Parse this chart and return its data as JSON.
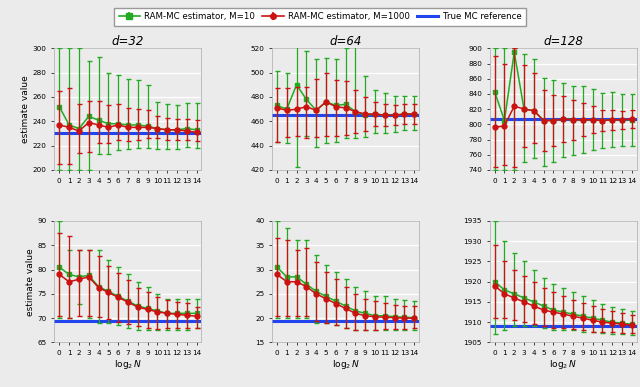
{
  "legend_labels": [
    "RAM-MC estimator, M=10",
    "RAM-MC estimator, M=1000",
    "True MC reference"
  ],
  "x_ticks": [
    0,
    1,
    2,
    3,
    4,
    5,
    6,
    7,
    8,
    9,
    10,
    11,
    12,
    13,
    14
  ],
  "y_label": "estimate value",
  "subplots": {
    "row0_col0": {
      "title": "d=32",
      "ylim": [
        200,
        300
      ],
      "yticks": [
        200,
        220,
        240,
        260,
        280,
        300
      ],
      "true_mc": 230,
      "green_mean": [
        252,
        237,
        234,
        244,
        241,
        238,
        238,
        237,
        237,
        236,
        234,
        233,
        233,
        234,
        233
      ],
      "green_err_lo": [
        52,
        37,
        34,
        44,
        28,
        25,
        22,
        20,
        19,
        18,
        17,
        16,
        16,
        15,
        15
      ],
      "green_err_hi": [
        48,
        63,
        66,
        46,
        52,
        42,
        40,
        38,
        37,
        34,
        22,
        21,
        20,
        21,
        22
      ],
      "red_mean": [
        237,
        235,
        232,
        239,
        237,
        235,
        237,
        235,
        235,
        235,
        234,
        233,
        233,
        232,
        231
      ],
      "red_err_lo": [
        32,
        30,
        18,
        24,
        15,
        13,
        12,
        11,
        10,
        9,
        8,
        8,
        8,
        7,
        7
      ],
      "red_err_hi": [
        28,
        32,
        22,
        18,
        20,
        18,
        17,
        16,
        15,
        14,
        10,
        10,
        9,
        10,
        10
      ]
    },
    "row0_col1": {
      "title": "d=64",
      "ylim": [
        420,
        520
      ],
      "yticks": [
        420,
        440,
        460,
        480,
        500,
        520
      ],
      "true_mc": 465,
      "green_mean": [
        473,
        470,
        490,
        478,
        469,
        476,
        473,
        474,
        468,
        465,
        466,
        465,
        465,
        466,
        466
      ],
      "green_err_lo": [
        30,
        28,
        68,
        30,
        30,
        34,
        30,
        28,
        22,
        18,
        16,
        15,
        14,
        13,
        13
      ],
      "green_err_hi": [
        28,
        30,
        35,
        40,
        42,
        36,
        38,
        46,
        54,
        32,
        20,
        18,
        16,
        15,
        15
      ],
      "red_mean": [
        471,
        469,
        470,
        472,
        469,
        476,
        472,
        471,
        468,
        466,
        466,
        465,
        465,
        466,
        466
      ],
      "red_err_lo": [
        28,
        22,
        22,
        26,
        22,
        28,
        24,
        22,
        18,
        14,
        10,
        9,
        8,
        8,
        8
      ],
      "red_err_hi": [
        16,
        18,
        18,
        16,
        26,
        24,
        22,
        22,
        18,
        14,
        10,
        9,
        8,
        8,
        8
      ]
    },
    "row0_col2": {
      "title": "d=128",
      "ylim": [
        740,
        900
      ],
      "yticks": [
        740,
        760,
        780,
        800,
        820,
        840,
        860,
        880,
        900
      ],
      "true_mc": 807,
      "green_mean": [
        843,
        805,
        895,
        820,
        818,
        805,
        805,
        807,
        806,
        806,
        806,
        805,
        806,
        806,
        806
      ],
      "green_err_lo": [
        103,
        65,
        155,
        70,
        62,
        60,
        54,
        50,
        46,
        44,
        40,
        36,
        36,
        34,
        34
      ],
      "green_err_hi": [
        57,
        95,
        5,
        72,
        68,
        56,
        54,
        48,
        44,
        44,
        40,
        36,
        36,
        34,
        34
      ],
      "red_mean": [
        796,
        798,
        824,
        820,
        818,
        805,
        805,
        807,
        806,
        806,
        806,
        805,
        806,
        806,
        807
      ],
      "red_err_lo": [
        52,
        52,
        80,
        50,
        42,
        40,
        34,
        30,
        26,
        22,
        18,
        14,
        13,
        12,
        12
      ],
      "red_err_hi": [
        94,
        82,
        76,
        58,
        50,
        40,
        34,
        30,
        26,
        22,
        18,
        14,
        13,
        12,
        12
      ]
    },
    "row1_col0": {
      "title": "d=32",
      "ylim": [
        65,
        90
      ],
      "yticks": [
        65,
        70,
        75,
        80,
        85,
        90
      ],
      "true_mc": 69.5,
      "green_mean": [
        80.5,
        79.0,
        78.5,
        78.8,
        76.5,
        75.5,
        74.5,
        73.5,
        72.5,
        72.0,
        71.5,
        71.0,
        71.0,
        71.0,
        71.0
      ],
      "green_err_lo": [
        10.5,
        9.0,
        5.5,
        8.8,
        7.5,
        6.5,
        6.0,
        5.5,
        5.0,
        4.5,
        4.0,
        3.5,
        3.5,
        3.5,
        3.0
      ],
      "green_err_hi": [
        9.5,
        5.0,
        5.5,
        5.2,
        7.5,
        6.5,
        6.0,
        5.5,
        5.0,
        4.5,
        3.5,
        3.0,
        3.0,
        3.0,
        3.0
      ],
      "red_mean": [
        79.0,
        77.5,
        78.0,
        78.5,
        76.3,
        75.3,
        74.3,
        73.3,
        72.3,
        71.8,
        71.3,
        71.0,
        70.8,
        70.6,
        70.4
      ],
      "red_err_lo": [
        8.5,
        7.5,
        7.5,
        8.0,
        6.0,
        5.5,
        5.0,
        4.5,
        4.0,
        3.8,
        3.5,
        3.0,
        2.8,
        2.6,
        2.5
      ],
      "red_err_hi": [
        8.5,
        9.5,
        6.0,
        5.5,
        6.5,
        5.5,
        5.0,
        4.5,
        4.0,
        3.5,
        3.0,
        2.8,
        2.5,
        2.5,
        2.0
      ]
    },
    "row1_col1": {
      "title": "d=64",
      "ylim": [
        15,
        40
      ],
      "yticks": [
        15,
        20,
        25,
        30,
        35,
        40
      ],
      "true_mc": 19.5,
      "green_mean": [
        30.5,
        28.5,
        28.5,
        27.0,
        25.5,
        24.5,
        23.5,
        22.5,
        21.5,
        21.0,
        20.5,
        20.5,
        20.3,
        20.2,
        20.1
      ],
      "green_err_lo": [
        10.5,
        8.5,
        8.5,
        7.0,
        6.5,
        5.5,
        5.0,
        4.5,
        4.0,
        3.5,
        3.0,
        3.0,
        2.8,
        2.7,
        2.6
      ],
      "green_err_hi": [
        9.5,
        10.0,
        7.5,
        9.0,
        7.5,
        6.5,
        6.0,
        5.5,
        5.0,
        4.5,
        4.0,
        4.0,
        3.7,
        3.5,
        3.4
      ],
      "red_mean": [
        29.0,
        27.5,
        27.5,
        26.5,
        25.0,
        24.0,
        23.0,
        22.0,
        21.0,
        20.5,
        20.3,
        20.2,
        20.1,
        20.0,
        20.0
      ],
      "red_err_lo": [
        8.5,
        7.0,
        7.0,
        6.0,
        5.5,
        5.0,
        4.5,
        4.0,
        3.5,
        3.0,
        2.8,
        2.5,
        2.3,
        2.2,
        2.0
      ],
      "red_err_hi": [
        7.5,
        8.5,
        6.5,
        8.0,
        6.5,
        5.5,
        5.0,
        4.5,
        4.0,
        3.5,
        3.2,
        3.0,
        2.7,
        2.5,
        2.5
      ]
    },
    "row1_col2": {
      "title": "d=128",
      "ylim": [
        1905,
        1935
      ],
      "yticks": [
        1905,
        1910,
        1915,
        1920,
        1925,
        1930,
        1935
      ],
      "true_mc": 1909,
      "green_mean": [
        1920,
        1918,
        1917,
        1916,
        1915,
        1914,
        1913,
        1912.5,
        1912,
        1911.5,
        1911,
        1910.5,
        1910,
        1909.8,
        1909.5
      ],
      "green_err_lo": [
        13,
        10,
        8,
        7,
        6,
        5.5,
        5,
        4.5,
        4,
        3.8,
        3.5,
        3.2,
        3,
        2.8,
        2.7
      ],
      "green_err_hi": [
        15,
        12,
        10,
        9,
        8,
        7,
        6.5,
        6,
        5.5,
        5,
        4.5,
        4,
        3.8,
        3.5,
        3.2
      ],
      "red_mean": [
        1919,
        1917,
        1916,
        1915,
        1914,
        1913,
        1912.5,
        1912,
        1911.5,
        1911,
        1910.5,
        1910,
        1909.8,
        1909.5,
        1909.3
      ],
      "red_err_lo": [
        8,
        6,
        5.5,
        5,
        4.5,
        4,
        3.8,
        3.5,
        3.2,
        3,
        2.8,
        2.5,
        2.3,
        2.2,
        2.0
      ],
      "red_err_hi": [
        10,
        8,
        7,
        6.5,
        6,
        5.5,
        5,
        4.5,
        4,
        3.8,
        3.5,
        3.2,
        3,
        2.8,
        2.5
      ]
    }
  },
  "green_color": "#22aa22",
  "red_color": "#cc1111",
  "blue_color": "#2244ee",
  "bg_color": "#ebebeb",
  "grid_color": "#ffffff"
}
